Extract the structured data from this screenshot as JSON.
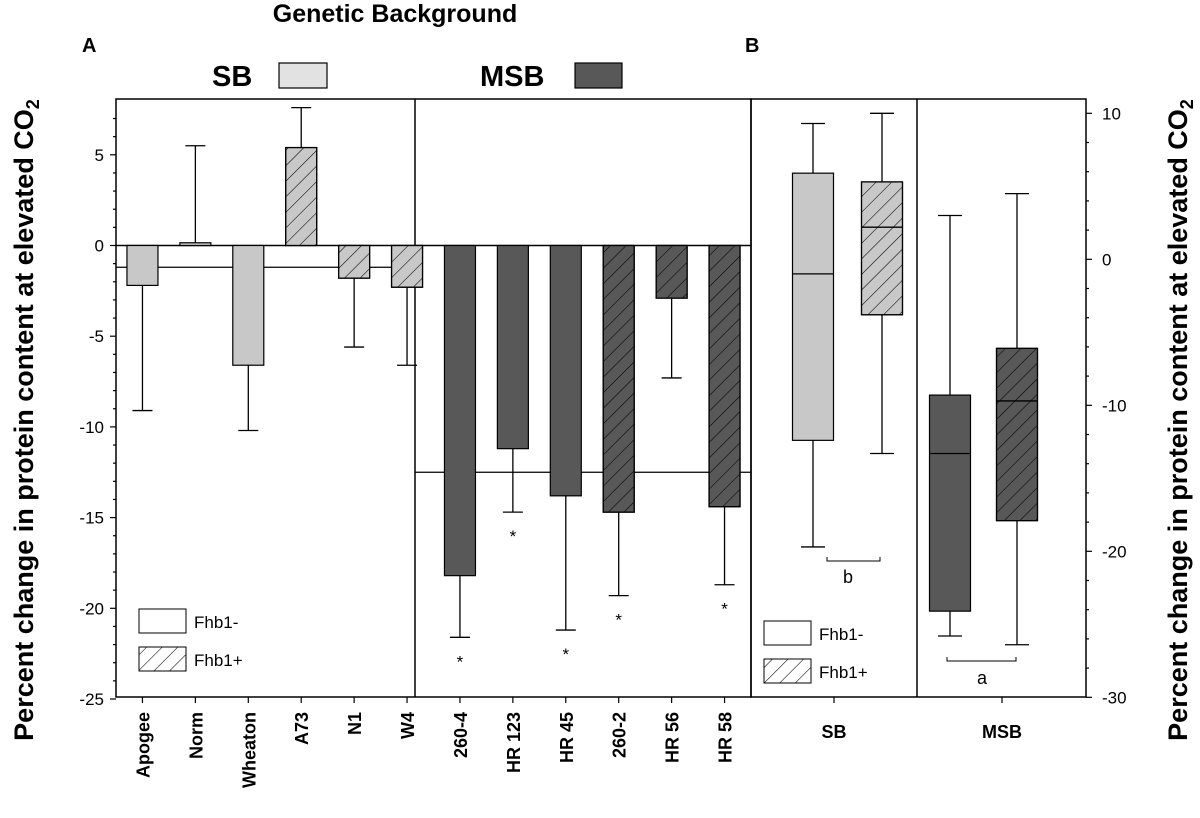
{
  "colors": {
    "sb": "#c8c8c8",
    "msb": "#585858",
    "legend_sb": "#e2e2e2",
    "line": "#000000"
  },
  "header": {
    "title": "Genetic Background",
    "sb_label": "SB",
    "msb_label": "MSB"
  },
  "y_axis_label_left": "Percent change in protein content at elevated CO",
  "y_axis_label_right": "Percent change in protein content at elevated CO",
  "y_axis_subscript": "2",
  "legend_a": {
    "minus": "Fhb1-",
    "plus": "Fhb1+"
  },
  "legend_b": {
    "minus": "Fhb1-",
    "plus": "Fhb1+"
  },
  "chart_data": [
    {
      "panel": "A",
      "type": "bar",
      "ylim": [
        -25,
        8
      ],
      "yticks": [
        5,
        0,
        -5,
        -10,
        -15,
        -20,
        -25
      ],
      "ytick_labels": [
        "5",
        "0",
        "-5",
        "-10",
        "-15",
        "-20",
        "-25"
      ],
      "categories": [
        "Apogee",
        "Norm",
        "Wheaton",
        "A73",
        "N1",
        "W4",
        "260-4",
        "HR 123",
        "HR 45",
        "260-2",
        "HR 56",
        "HR 58"
      ],
      "values": [
        -2.2,
        0.15,
        -6.6,
        5.4,
        -1.8,
        -2.3,
        -18.2,
        -11.2,
        -13.8,
        -14.7,
        -2.9,
        -14.4
      ],
      "error_ends": [
        -9.1,
        5.5,
        -10.2,
        7.6,
        -5.6,
        -6.6,
        -21.6,
        -14.7,
        -21.2,
        -19.3,
        -7.3,
        -18.7
      ],
      "background": [
        "SB",
        "SB",
        "SB",
        "SB",
        "SB",
        "SB",
        "MSB",
        "MSB",
        "MSB",
        "MSB",
        "MSB",
        "MSB"
      ],
      "fhb1": [
        "-",
        "-",
        "-",
        "+",
        "+",
        "+",
        "-",
        "-",
        "-",
        "+",
        "+",
        "+"
      ],
      "significance": [
        "",
        "",
        "",
        "",
        "",
        "",
        "*",
        "*",
        "*",
        "*",
        "",
        "*"
      ],
      "group_means": {
        "SB": -1.2,
        "MSB": -12.5
      }
    },
    {
      "panel": "B",
      "type": "box",
      "ylim": [
        -30,
        10
      ],
      "yticks": [
        10,
        0,
        -10,
        -20,
        -30
      ],
      "ytick_labels": [
        "10",
        "0",
        "-10",
        "-20",
        "-30"
      ],
      "categories": [
        "SB",
        "MSB"
      ],
      "boxes": [
        {
          "group": "SB",
          "fhb1": "-",
          "whisker_high": 9.3,
          "q3": 5.9,
          "median": -1.0,
          "q1": -12.4,
          "whisker_low": -19.7
        },
        {
          "group": "SB",
          "fhb1": "+",
          "whisker_high": 10.0,
          "q3": 5.3,
          "median": 2.2,
          "q1": -3.8,
          "whisker_low": -13.3
        },
        {
          "group": "MSB",
          "fhb1": "-",
          "whisker_high": 3.0,
          "q3": -9.3,
          "median": -13.3,
          "q1": -24.1,
          "whisker_low": -25.8
        },
        {
          "group": "MSB",
          "fhb1": "+",
          "whisker_high": 4.5,
          "q3": -6.1,
          "median": -9.7,
          "q1": -17.9,
          "whisker_low": -26.4
        }
      ],
      "group_letters": {
        "SB": "b",
        "MSB": "a"
      }
    }
  ],
  "panel_labels": {
    "a": "A",
    "b": "B"
  }
}
